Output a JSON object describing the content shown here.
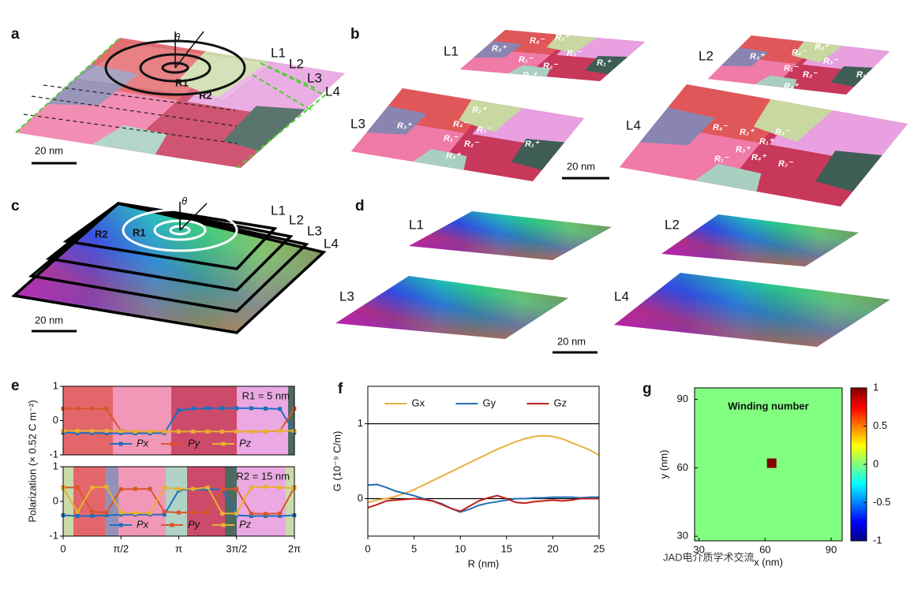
{
  "panels": {
    "labels": [
      "a",
      "b",
      "c",
      "d",
      "e",
      "f",
      "g"
    ],
    "a": {
      "theta": "θ",
      "regions": [
        "R1",
        "R2"
      ],
      "layers": [
        "L1",
        "L2",
        "L3",
        "L4"
      ],
      "scale": "20 nm"
    },
    "b": {
      "layers": [
        {
          "name": "L1",
          "regions": [
            "R₃⁺",
            "R₄⁻",
            "R₂⁺",
            "R₁⁻",
            "R₂⁻",
            "R₃⁻",
            "R₁⁺",
            "R₄⁺"
          ]
        },
        {
          "name": "L2",
          "regions": [
            "R₃⁺",
            "R₄⁻",
            "R₂⁺",
            "R₃⁻",
            "R₁⁻",
            "R₂⁻",
            "R₁⁺",
            "R₄⁺"
          ]
        },
        {
          "name": "L3",
          "regions": [
            "R₂⁺",
            "R₃⁺",
            "R₄⁻",
            "R₃⁻",
            "R₁⁻",
            "R₂⁻",
            "R₁⁺",
            "R₄⁺"
          ]
        },
        {
          "name": "L4",
          "regions": [
            "R₄⁻",
            "R₂⁺",
            "R₃⁻",
            "R₃⁺",
            "R₁⁺",
            "R₁⁻",
            "R₄⁺",
            "R₂⁻"
          ]
        }
      ],
      "scale": "20 nm"
    },
    "c": {
      "theta": "θ",
      "regions": [
        "R1",
        "R2"
      ],
      "layers": [
        "L1",
        "L2",
        "L3",
        "L4"
      ],
      "scale": "20 nm"
    },
    "d": {
      "layers": [
        "L1",
        "L2",
        "L3",
        "L4"
      ],
      "scale": "20 nm"
    }
  },
  "watermark": "JAD电介质学术交流",
  "chart_data": [
    {
      "type": "line",
      "ylabel": "Polarization (× 0.52 C m⁻²)",
      "annotation": "R1 = 5 nm",
      "legend": "lower center",
      "markers": true,
      "xlim": [
        0,
        6.2832
      ],
      "ylim": [
        -1,
        1
      ],
      "yticks": [
        -1,
        0,
        1
      ],
      "x": [
        0,
        0.39,
        0.79,
        1.18,
        1.57,
        1.96,
        2.36,
        2.75,
        3.14,
        3.53,
        3.93,
        4.32,
        4.71,
        5.11,
        5.5,
        5.89,
        6.28
      ],
      "series": [
        {
          "name": "Px",
          "color": "#1f6fc0",
          "values": [
            -0.35,
            -0.36,
            -0.36,
            -0.37,
            -0.37,
            -0.37,
            -0.37,
            -0.36,
            0.3,
            0.35,
            0.36,
            0.36,
            0.36,
            0.36,
            0.35,
            0.34,
            -0.35
          ]
        },
        {
          "name": "Py",
          "color": "#d9552a",
          "values": [
            0.35,
            0.35,
            0.35,
            0.34,
            -0.3,
            -0.32,
            -0.32,
            -0.32,
            -0.32,
            -0.32,
            -0.32,
            -0.32,
            -0.32,
            -0.32,
            -0.32,
            -0.3,
            0.35
          ]
        },
        {
          "name": "Pz",
          "color": "#e8b030",
          "values": [
            -0.3,
            -0.3,
            -0.3,
            -0.3,
            -0.31,
            -0.32,
            -0.32,
            -0.32,
            -0.32,
            -0.32,
            -0.32,
            -0.32,
            -0.32,
            -0.32,
            -0.31,
            -0.3,
            -0.3
          ]
        }
      ]
    },
    {
      "type": "line",
      "annotation": "R2 = 15 nm",
      "legend": "lower center",
      "markers": true,
      "xlim": [
        0,
        6.2832
      ],
      "ylim": [
        -1,
        1
      ],
      "yticks": [
        -1,
        0,
        1
      ],
      "xticks": [
        0,
        {
          "value": 1.5708,
          "label": "π/2"
        },
        {
          "value": 3.1416,
          "label": "π"
        },
        {
          "value": 4.7124,
          "label": "3π/2"
        },
        {
          "value": 6.2832,
          "label": "2π"
        }
      ],
      "x": [
        0,
        0.39,
        0.79,
        1.18,
        1.57,
        1.96,
        2.36,
        2.75,
        3.14,
        3.53,
        3.93,
        4.32,
        4.71,
        5.11,
        5.5,
        5.89,
        6.28
      ],
      "series": [
        {
          "name": "Px",
          "color": "#1f6fc0",
          "values": [
            -0.4,
            -0.42,
            -0.42,
            -0.4,
            -0.38,
            -0.38,
            -0.38,
            -0.38,
            0.32,
            0.35,
            0.35,
            0.34,
            -0.4,
            -0.42,
            -0.42,
            -0.42,
            -0.4
          ]
        },
        {
          "name": "Py",
          "color": "#d9552a",
          "values": [
            0.4,
            0.4,
            -0.3,
            -0.32,
            0.35,
            0.36,
            0.36,
            -0.3,
            -0.32,
            -0.32,
            -0.32,
            0.35,
            0.36,
            -0.35,
            -0.36,
            -0.35,
            0.4
          ]
        },
        {
          "name": "Pz",
          "color": "#e8b030",
          "values": [
            0.38,
            -0.3,
            0.4,
            0.42,
            -0.32,
            -0.34,
            -0.34,
            0.4,
            0.36,
            0.36,
            0.4,
            -0.35,
            -0.35,
            0.4,
            0.42,
            0.4,
            0.38
          ]
        }
      ]
    },
    {
      "type": "line",
      "xlabel": "R (nm)",
      "ylabel": "G (10⁻⁹ C/m)",
      "legend": "upper center",
      "grid": true,
      "xlim": [
        0,
        25
      ],
      "ylim": [
        -0.5,
        1.5
      ],
      "xticks": [
        0,
        5,
        10,
        15,
        20,
        25
      ],
      "yticks": [
        0,
        1
      ],
      "x": [
        0,
        1,
        2,
        3,
        4,
        5,
        6,
        7,
        8,
        9,
        10,
        11,
        12,
        13,
        14,
        15,
        16,
        17,
        18,
        19,
        20,
        21,
        22,
        23,
        24,
        25
      ],
      "series": [
        {
          "name": "Gx",
          "color": "#e8b040",
          "values": [
            -0.05,
            -0.02,
            0.0,
            0.03,
            0.07,
            0.12,
            0.18,
            0.24,
            0.3,
            0.36,
            0.42,
            0.48,
            0.54,
            0.6,
            0.66,
            0.71,
            0.76,
            0.8,
            0.83,
            0.84,
            0.83,
            0.8,
            0.75,
            0.7,
            0.65,
            0.58
          ]
        },
        {
          "name": "Gy",
          "color": "#1f6fb5",
          "values": [
            0.18,
            0.19,
            0.15,
            0.1,
            0.07,
            0.04,
            0.0,
            -0.03,
            -0.07,
            -0.13,
            -0.18,
            -0.14,
            -0.09,
            -0.06,
            -0.04,
            -0.02,
            0.0,
            0.0,
            0.01,
            0.01,
            0.02,
            0.02,
            0.02,
            0.01,
            0.02,
            0.02
          ]
        },
        {
          "name": "Gz",
          "color": "#c0201d",
          "values": [
            -0.12,
            -0.08,
            -0.03,
            -0.02,
            -0.01,
            0.0,
            -0.01,
            -0.03,
            -0.08,
            -0.13,
            -0.17,
            -0.1,
            -0.03,
            0.01,
            0.04,
            0.0,
            -0.05,
            -0.06,
            -0.04,
            -0.03,
            -0.02,
            -0.03,
            -0.02,
            0.0,
            0.0,
            0.0
          ]
        }
      ]
    },
    {
      "type": "heatmap",
      "title": "Winding number",
      "xlabel": "x (nm)",
      "ylabel": "y (nm)",
      "xlim": [
        28,
        95
      ],
      "ylim": [
        28,
        95
      ],
      "xticks": [
        30,
        60,
        90
      ],
      "yticks": [
        30,
        60,
        90
      ],
      "background": 0,
      "points": [
        {
          "x": 63,
          "y": 62,
          "value": 1
        }
      ],
      "colorbar": {
        "lim": [
          -1,
          1
        ],
        "ticks": [
          -1,
          -0.5,
          0,
          0.5,
          1
        ]
      }
    }
  ]
}
